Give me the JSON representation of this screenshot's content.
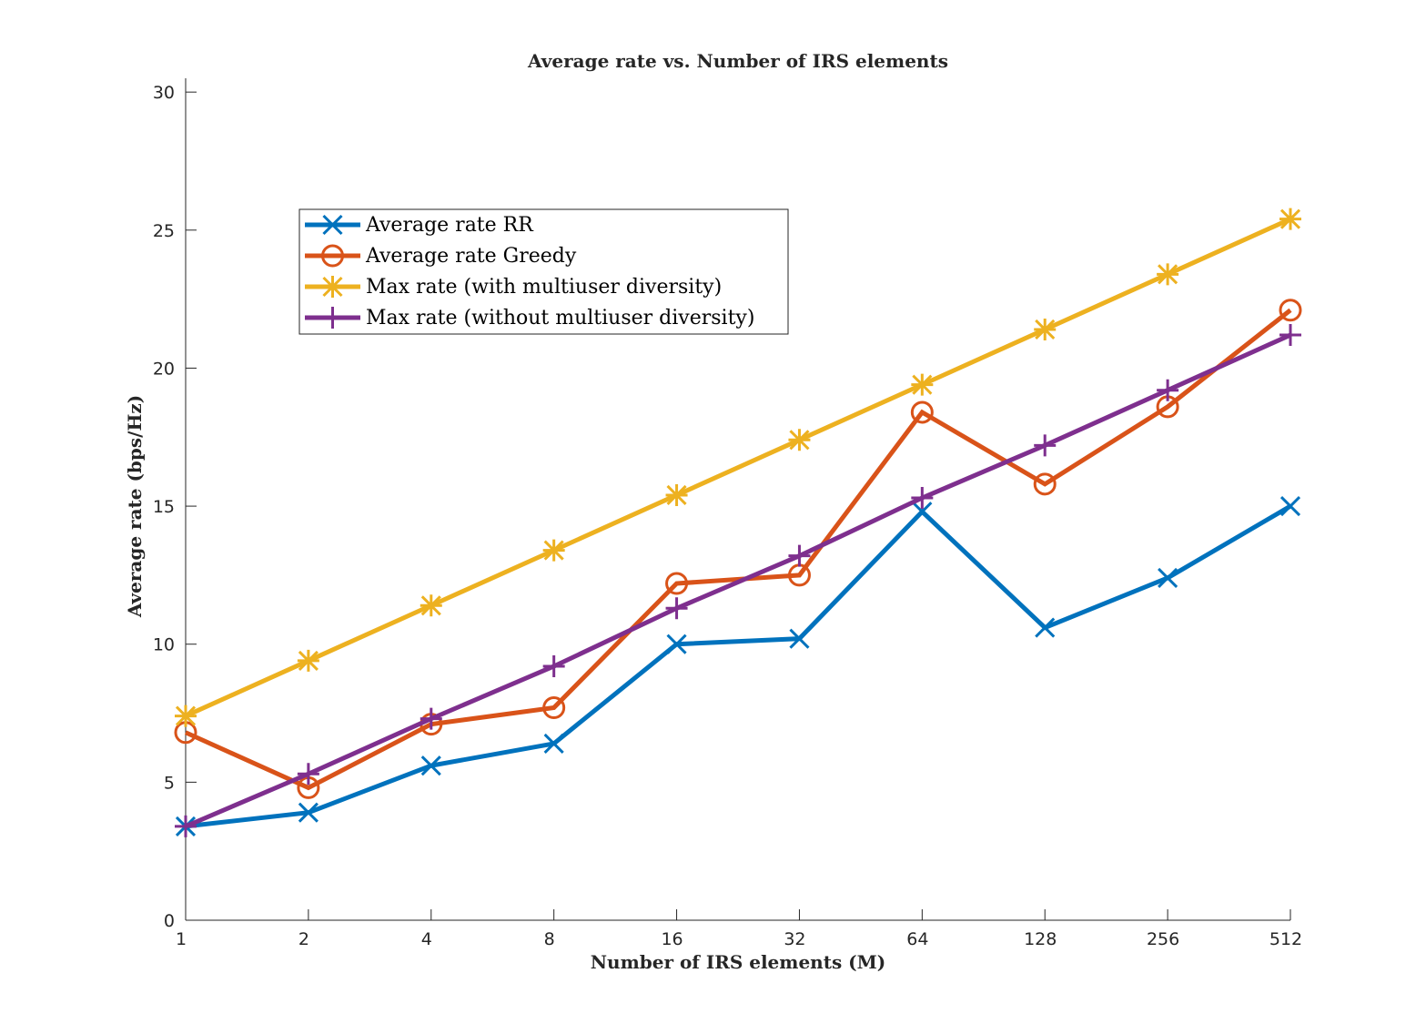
{
  "chart_data": {
    "type": "line",
    "title": "Average rate vs. Number of IRS elements",
    "xlabel": "Number of IRS elements (M)",
    "ylabel": "Average rate (bps/Hz)",
    "x": [
      "1",
      "2",
      "4",
      "8",
      "16",
      "32",
      "64",
      "128",
      "256",
      "512"
    ],
    "y_ticks": [
      "0",
      "5",
      "10",
      "15",
      "20",
      "25",
      "30"
    ],
    "ylim": [
      0,
      30.5
    ],
    "x_scale": "log2",
    "grid": false,
    "legend_position": "upper-left",
    "series": [
      {
        "name": "Average rate RR",
        "color": "#0072BD",
        "marker": "x",
        "values": [
          3.4,
          3.9,
          5.6,
          6.4,
          10.0,
          10.2,
          14.8,
          10.6,
          12.4,
          15.0
        ]
      },
      {
        "name": "Average rate Greedy",
        "color": "#D95319",
        "marker": "o",
        "values": [
          6.8,
          4.8,
          7.1,
          7.7,
          12.2,
          12.5,
          18.4,
          15.8,
          18.6,
          22.1
        ]
      },
      {
        "name": "Max rate (with multiuser diversity)",
        "color": "#EDB120",
        "marker": "*",
        "values": [
          7.4,
          9.4,
          11.4,
          13.4,
          15.4,
          17.4,
          19.4,
          21.4,
          23.4,
          25.4
        ]
      },
      {
        "name": "Max rate (without multiuser diversity)",
        "color": "#7E2F8E",
        "marker": "+",
        "values": [
          3.4,
          5.3,
          7.3,
          9.2,
          11.3,
          13.2,
          15.3,
          17.2,
          19.2,
          21.2
        ]
      }
    ]
  }
}
